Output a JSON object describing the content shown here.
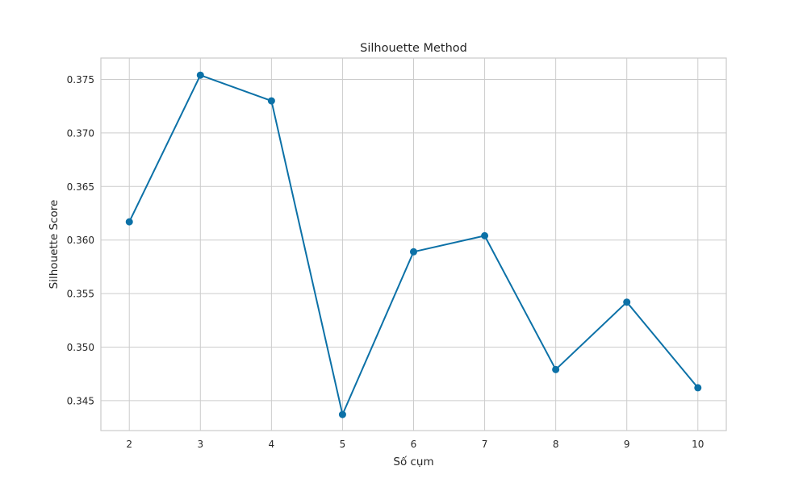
{
  "chart_data": {
    "type": "line",
    "title": "Silhouette Method",
    "xlabel": "Số cụm",
    "ylabel": "Silhouette Score",
    "x": [
      2,
      3,
      4,
      5,
      6,
      7,
      8,
      9,
      10
    ],
    "series": [
      {
        "values": [
          0.3617,
          0.3754,
          0.373,
          0.3437,
          0.3589,
          0.3604,
          0.3479,
          0.3542,
          0.3462
        ]
      }
    ],
    "xticks": [
      "2",
      "3",
      "4",
      "5",
      "6",
      "7",
      "8",
      "9",
      "10"
    ],
    "yticks": [
      "0.345",
      "0.350",
      "0.355",
      "0.360",
      "0.365",
      "0.370",
      "0.375"
    ],
    "xlim": [
      1.6,
      10.4
    ],
    "ylim": [
      0.3422,
      0.377
    ],
    "grid": true,
    "colors": {
      "line": "#0c71a7",
      "marker": "#0c71a7",
      "grid": "#cccccc",
      "frame": "#cccccc",
      "text": "#262626"
    }
  }
}
